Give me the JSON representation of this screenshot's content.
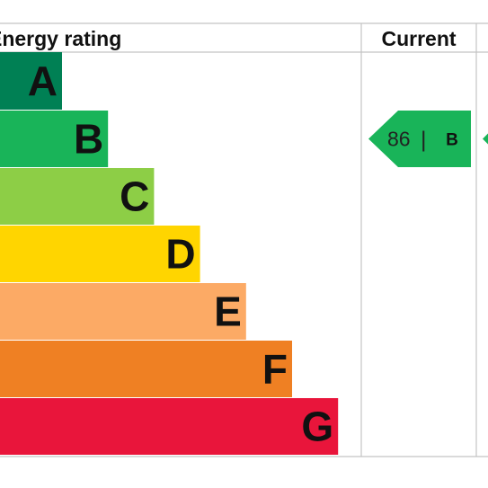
{
  "chart_data": {
    "type": "bar",
    "title": "Energy rating",
    "columns": [
      "Current",
      ""
    ],
    "categories": [
      "A",
      "B",
      "C",
      "D",
      "E",
      "F",
      "G"
    ],
    "band_colors": [
      "#008054",
      "#19b459",
      "#8dce46",
      "#ffd500",
      "#fcaa65",
      "#ef8023",
      "#e9153b"
    ],
    "current": {
      "score": "86",
      "band": "B",
      "separator": "|",
      "color": "#19b459"
    },
    "potential": {
      "color": "#19b459"
    }
  }
}
